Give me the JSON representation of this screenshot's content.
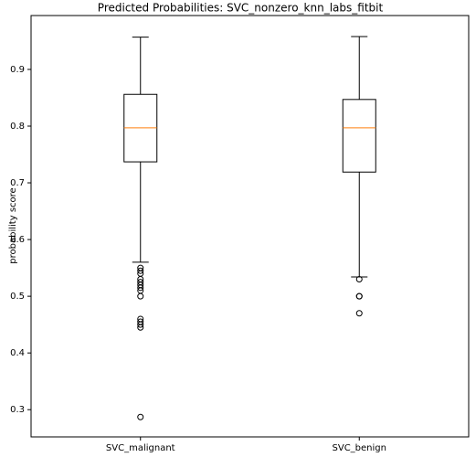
{
  "chart_data": {
    "type": "box",
    "title": "Predicted Probabilities: SVC_nonzero_knn_labs_fitbit",
    "ylabel": "probability score",
    "categories": [
      "SVC_malignant",
      "SVC_benign"
    ],
    "box_color": "#000000",
    "median_color": "#ff7f0e",
    "boxes": [
      {
        "whislo": 0.56,
        "q1": 0.737,
        "med": 0.797,
        "q3": 0.856,
        "whishi": 0.957,
        "fliers": [
          0.55,
          0.545,
          0.54,
          0.53,
          0.525,
          0.52,
          0.515,
          0.51,
          0.5,
          0.46,
          0.455,
          0.45,
          0.445,
          0.287
        ]
      },
      {
        "whislo": 0.534,
        "q1": 0.719,
        "med": 0.797,
        "q3": 0.847,
        "whishi": 0.958,
        "fliers": [
          0.53,
          0.5,
          0.5,
          0.47
        ]
      }
    ],
    "ylim": [
      0.252,
      0.995
    ],
    "yticks": [
      0.3,
      0.4,
      0.5,
      0.6,
      0.7,
      0.8,
      0.9
    ]
  }
}
